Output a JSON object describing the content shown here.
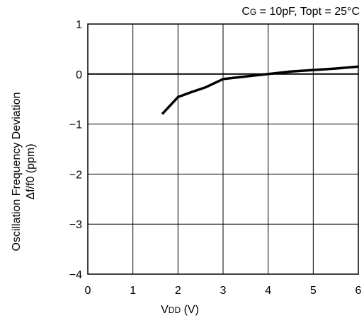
{
  "chart_data": {
    "type": "line",
    "condition": {
      "cg_main": "C",
      "cg_sub": "G",
      "rest": " = 10pF, Topt = 25°C"
    },
    "ylabel": [
      "Oscillation Frequency Deviation",
      "Δf/f0 (ppm)"
    ],
    "xlabel": {
      "main": "V",
      "sub": "DD",
      "unit": " (V)"
    },
    "xlim": [
      0,
      6
    ],
    "ylim": [
      -4,
      1
    ],
    "xticks": [
      0,
      1,
      2,
      3,
      4,
      5,
      6
    ],
    "yticks": [
      1,
      0,
      -1,
      -2,
      -3,
      -4
    ],
    "ytick_labels": [
      "1",
      "0",
      "−1",
      "−2",
      "−3",
      "−4"
    ],
    "grid": true,
    "reference_line_y": 0,
    "series": [
      {
        "x": [
          1.65,
          2.0,
          2.3,
          2.6,
          3.0,
          3.5,
          4.0,
          4.5,
          5.0,
          5.5,
          6.0
        ],
        "y": [
          -0.8,
          -0.46,
          -0.36,
          -0.27,
          -0.1,
          -0.05,
          0.0,
          0.05,
          0.08,
          0.11,
          0.15
        ]
      }
    ]
  }
}
